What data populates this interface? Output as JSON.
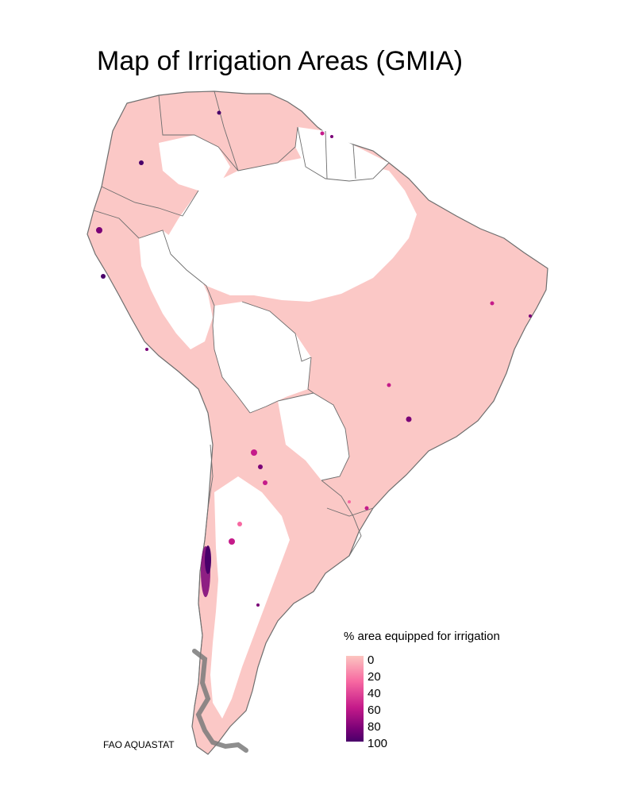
{
  "title": "Map of Irrigation Areas (GMIA)",
  "legend": {
    "title": "% area equipped for irrigation",
    "ticks": [
      "0",
      "20",
      "40",
      "60",
      "80",
      "100"
    ],
    "colors": [
      "#fcc5c0",
      "#f768a1",
      "#c51b8a",
      "#7a0177",
      "#49006a"
    ]
  },
  "credit": "FAO AQUASTAT",
  "colors": {
    "land_outline": "#6e6e6e",
    "low_irrigation": "#fbc8c6",
    "background": "#ffffff"
  }
}
